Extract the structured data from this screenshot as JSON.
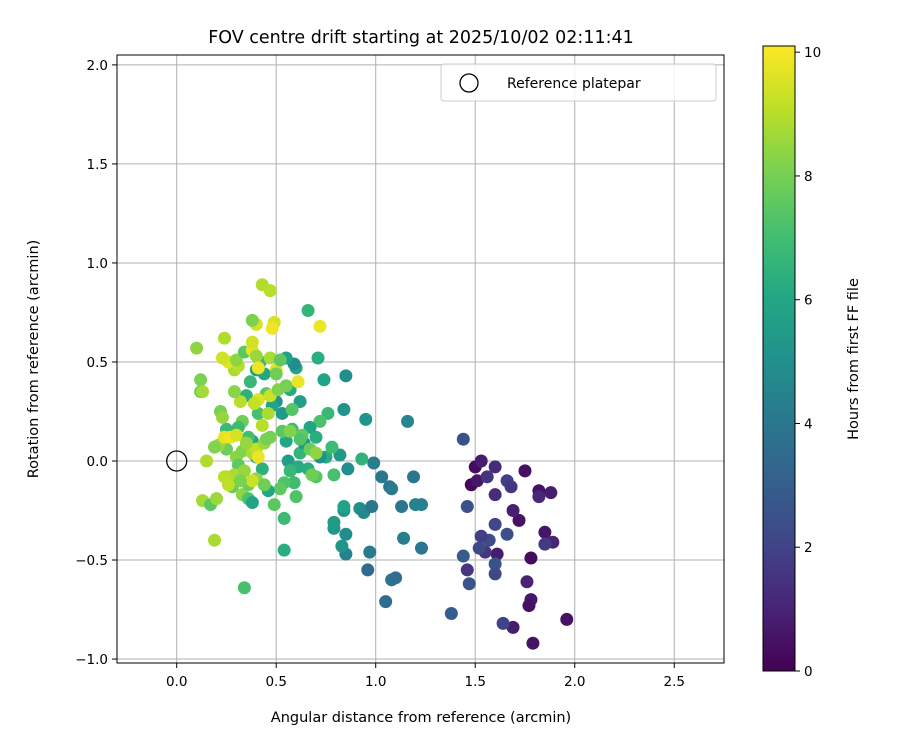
{
  "chart_data": {
    "type": "scatter",
    "title": "FOV centre drift starting at 2025/10/02 02:11:41",
    "xlabel": "Angular distance from reference (arcmin)",
    "ylabel": "Rotation from reference (arcmin)",
    "xlim": [
      -0.3,
      2.75
    ],
    "ylim": [
      -1.02,
      2.05
    ],
    "xticks": [
      0.0,
      0.5,
      1.0,
      1.5,
      2.0,
      2.5
    ],
    "xtick_labels": [
      "0.0",
      "0.5",
      "1.0",
      "1.5",
      "2.0",
      "2.5"
    ],
    "yticks": [
      -1.0,
      -0.5,
      0.0,
      0.5,
      1.0,
      1.5,
      2.0
    ],
    "ytick_labels": [
      "−1.0",
      "−0.5",
      "0.0",
      "0.5",
      "1.0",
      "1.5",
      "2.0"
    ],
    "grid": true,
    "legend": {
      "placement": "upper-right",
      "entries": [
        "Reference platepar"
      ]
    },
    "colorbar": {
      "label": "Hours from first FF file",
      "colormap": "viridis",
      "range": [
        0,
        10.1
      ],
      "ticks": [
        0,
        2,
        4,
        6,
        8,
        10
      ],
      "tick_labels": [
        "0",
        "2",
        "4",
        "6",
        "8",
        "10"
      ]
    },
    "reference_point": {
      "x": 0.0,
      "y": 0.0
    },
    "points": [
      [
        1.5,
        -0.03,
        0.3
      ],
      [
        1.53,
        0.0,
        0.8
      ],
      [
        1.6,
        -0.03,
        1.2
      ],
      [
        1.75,
        -0.05,
        0.4
      ],
      [
        1.48,
        -0.12,
        0.2
      ],
      [
        1.51,
        -0.1,
        0.6
      ],
      [
        1.56,
        -0.08,
        1.5
      ],
      [
        1.66,
        -0.1,
        1.9
      ],
      [
        1.68,
        -0.13,
        1.6
      ],
      [
        1.82,
        -0.15,
        0.5
      ],
      [
        1.88,
        -0.16,
        0.8
      ],
      [
        1.82,
        -0.18,
        1.1
      ],
      [
        1.6,
        -0.17,
        1.3
      ],
      [
        1.72,
        -0.3,
        0.5
      ],
      [
        1.69,
        -0.25,
        0.9
      ],
      [
        1.85,
        -0.36,
        0.6
      ],
      [
        1.89,
        -0.41,
        1.0
      ],
      [
        1.85,
        -0.42,
        1.7
      ],
      [
        1.78,
        -0.49,
        0.3
      ],
      [
        1.61,
        -0.47,
        0.8
      ],
      [
        1.57,
        -0.4,
        2.3
      ],
      [
        1.53,
        -0.38,
        1.9
      ],
      [
        1.55,
        -0.46,
        1.6
      ],
      [
        1.52,
        -0.44,
        2.2
      ],
      [
        1.6,
        -0.32,
        2.1
      ],
      [
        1.66,
        -0.37,
        2.4
      ],
      [
        1.6,
        -0.52,
        2.6
      ],
      [
        1.6,
        -0.57,
        2.2
      ],
      [
        1.46,
        -0.55,
        1.6
      ],
      [
        1.76,
        -0.61,
        1.0
      ],
      [
        1.78,
        -0.7,
        0.7
      ],
      [
        1.77,
        -0.73,
        0.4
      ],
      [
        1.69,
        -0.84,
        0.8
      ],
      [
        1.64,
        -0.82,
        2.0
      ],
      [
        1.79,
        -0.92,
        0.5
      ],
      [
        1.96,
        -0.8,
        0.5
      ],
      [
        1.47,
        -0.62,
        2.6
      ],
      [
        1.44,
        -0.48,
        2.9
      ],
      [
        1.44,
        0.11,
        2.5
      ],
      [
        1.46,
        -0.23,
        2.5
      ],
      [
        1.38,
        -0.77,
        3.0
      ],
      [
        1.05,
        -0.71,
        3.6
      ],
      [
        1.08,
        -0.6,
        3.8
      ],
      [
        1.1,
        -0.59,
        3.7
      ],
      [
        0.96,
        -0.55,
        3.5
      ],
      [
        0.97,
        -0.46,
        4.2
      ],
      [
        0.85,
        -0.47,
        4.5
      ],
      [
        0.83,
        -0.43,
        5.2
      ],
      [
        0.85,
        -0.37,
        4.9
      ],
      [
        0.79,
        -0.34,
        5.3
      ],
      [
        0.79,
        -0.31,
        5.5
      ],
      [
        0.84,
        -0.25,
        5.2
      ],
      [
        0.84,
        -0.23,
        5.8
      ],
      [
        0.92,
        -0.24,
        5.0
      ],
      [
        0.94,
        -0.26,
        4.7
      ],
      [
        0.98,
        -0.23,
        4.0
      ],
      [
        1.03,
        -0.08,
        4.0
      ],
      [
        0.99,
        -0.01,
        4.3
      ],
      [
        1.07,
        -0.13,
        3.8
      ],
      [
        1.08,
        -0.14,
        4.2
      ],
      [
        1.13,
        -0.23,
        3.9
      ],
      [
        1.19,
        -0.08,
        4.0
      ],
      [
        1.2,
        -0.22,
        4.5
      ],
      [
        1.23,
        -0.22,
        4.5
      ],
      [
        1.14,
        -0.39,
        4.3
      ],
      [
        1.23,
        -0.44,
        3.9
      ],
      [
        1.16,
        0.2,
        4.6
      ],
      [
        0.95,
        0.21,
        5.2
      ],
      [
        0.86,
        -0.04,
        5.0
      ],
      [
        0.82,
        0.03,
        5.4
      ],
      [
        0.84,
        0.26,
        5.2
      ],
      [
        0.85,
        0.43,
        5.0
      ],
      [
        0.93,
        0.01,
        6.5
      ],
      [
        0.75,
        0.02,
        6.2
      ],
      [
        0.72,
        0.02,
        5.0
      ],
      [
        0.74,
        0.41,
        5.8
      ],
      [
        0.71,
        0.52,
        6.3
      ],
      [
        0.66,
        0.76,
        6.6
      ],
      [
        0.78,
        0.07,
        6.9
      ],
      [
        0.79,
        -0.07,
        7.1
      ],
      [
        0.76,
        0.24,
        6.7
      ],
      [
        0.72,
        0.2,
        7.2
      ],
      [
        0.7,
        0.12,
        6.3
      ],
      [
        0.67,
        0.17,
        6.0
      ],
      [
        0.62,
        0.3,
        5.6
      ],
      [
        0.6,
        0.47,
        5.9
      ],
      [
        0.59,
        0.49,
        4.9
      ],
      [
        0.55,
        0.52,
        5.7
      ],
      [
        0.57,
        0.36,
        6.2
      ],
      [
        0.53,
        0.24,
        5.5
      ],
      [
        0.5,
        0.3,
        5.1
      ],
      [
        0.48,
        0.28,
        5.8
      ],
      [
        0.55,
        0.1,
        6.0
      ],
      [
        0.53,
        0.15,
        7.5
      ],
      [
        0.58,
        0.16,
        6.8
      ],
      [
        0.56,
        0.0,
        5.6
      ],
      [
        0.62,
        0.04,
        6.6
      ],
      [
        0.64,
        0.09,
        5.3
      ],
      [
        0.66,
        -0.04,
        6.3
      ],
      [
        0.7,
        -0.08,
        7.4
      ],
      [
        0.61,
        -0.03,
        6.2
      ],
      [
        0.57,
        -0.05,
        6.7
      ],
      [
        0.59,
        -0.11,
        6.9
      ],
      [
        0.54,
        -0.11,
        7.3
      ],
      [
        0.52,
        -0.14,
        7.6
      ],
      [
        0.46,
        -0.15,
        6.0
      ],
      [
        0.49,
        -0.22,
        7.5
      ],
      [
        0.54,
        -0.29,
        6.8
      ],
      [
        0.6,
        -0.18,
        7.3
      ],
      [
        0.54,
        -0.45,
        6.3
      ],
      [
        0.43,
        -0.04,
        6.4
      ],
      [
        0.4,
        0.02,
        6.0
      ],
      [
        0.38,
        0.1,
        5.9
      ],
      [
        0.36,
        0.12,
        7.0
      ],
      [
        0.41,
        0.24,
        7.1
      ],
      [
        0.45,
        0.34,
        7.5
      ],
      [
        0.44,
        0.44,
        6.0
      ],
      [
        0.42,
        0.5,
        6.8
      ],
      [
        0.4,
        0.46,
        5.7
      ],
      [
        0.37,
        0.4,
        6.7
      ],
      [
        0.35,
        0.33,
        6.4
      ],
      [
        0.33,
        0.2,
        7.9
      ],
      [
        0.31,
        0.17,
        6.9
      ],
      [
        0.28,
        0.13,
        6.5
      ],
      [
        0.25,
        0.16,
        6.8
      ],
      [
        0.23,
        0.09,
        7.3
      ],
      [
        0.25,
        0.06,
        7.9
      ],
      [
        0.3,
        0.02,
        8.4
      ],
      [
        0.33,
        0.05,
        8.2
      ],
      [
        0.31,
        -0.02,
        7.6
      ],
      [
        0.29,
        -0.07,
        8.8
      ],
      [
        0.25,
        -0.08,
        8.9
      ],
      [
        0.28,
        -0.13,
        7.8
      ],
      [
        0.33,
        -0.17,
        8.4
      ],
      [
        0.36,
        -0.19,
        7.2
      ],
      [
        0.38,
        -0.21,
        5.9
      ],
      [
        0.36,
        -0.12,
        7.8
      ],
      [
        0.4,
        -0.09,
        8.3
      ],
      [
        0.34,
        -0.05,
        8.5
      ],
      [
        0.38,
        0.04,
        8.8
      ],
      [
        0.4,
        0.06,
        9.2
      ],
      [
        0.44,
        0.09,
        8.6
      ],
      [
        0.47,
        0.12,
        8.0
      ],
      [
        0.46,
        0.24,
        8.8
      ],
      [
        0.47,
        0.33,
        9.3
      ],
      [
        0.41,
        0.31,
        9.6
      ],
      [
        0.39,
        0.29,
        9.2
      ],
      [
        0.32,
        0.3,
        9.0
      ],
      [
        0.29,
        0.35,
        8.3
      ],
      [
        0.29,
        0.46,
        8.8
      ],
      [
        0.31,
        0.48,
        9.0
      ],
      [
        0.26,
        0.5,
        9.6
      ],
      [
        0.23,
        0.52,
        9.4
      ],
      [
        0.24,
        0.62,
        8.9
      ],
      [
        0.3,
        0.51,
        8.4
      ],
      [
        0.34,
        0.55,
        7.5
      ],
      [
        0.38,
        0.56,
        9.7
      ],
      [
        0.38,
        0.6,
        9.4
      ],
      [
        0.4,
        0.53,
        8.6
      ],
      [
        0.41,
        0.47,
        9.9
      ],
      [
        0.47,
        0.52,
        8.8
      ],
      [
        0.5,
        0.46,
        9.6
      ],
      [
        0.52,
        0.51,
        7.6
      ],
      [
        0.5,
        0.44,
        7.9
      ],
      [
        0.51,
        0.36,
        8.2
      ],
      [
        0.55,
        0.38,
        8.0
      ],
      [
        0.61,
        0.4,
        9.8
      ],
      [
        0.58,
        0.26,
        7.4
      ],
      [
        0.43,
        0.89,
        8.9
      ],
      [
        0.47,
        0.86,
        9.0
      ],
      [
        0.49,
        0.7,
        9.5
      ],
      [
        0.48,
        0.67,
        9.9
      ],
      [
        0.4,
        0.69,
        9.5
      ],
      [
        0.38,
        0.71,
        8.1
      ],
      [
        0.72,
        0.68,
        9.8
      ],
      [
        0.12,
        0.41,
        8.1
      ],
      [
        0.12,
        0.35,
        7.8
      ],
      [
        0.13,
        0.35,
        8.7
      ],
      [
        0.1,
        0.57,
        8.4
      ],
      [
        0.21,
        0.08,
        8.6
      ],
      [
        0.24,
        0.12,
        9.7
      ],
      [
        0.27,
        0.12,
        9.9
      ],
      [
        0.3,
        0.13,
        9.5
      ],
      [
        0.22,
        0.25,
        8.0
      ],
      [
        0.15,
        0.0,
        8.9
      ],
      [
        0.19,
        0.07,
        8.2
      ],
      [
        0.23,
        0.22,
        8.5
      ],
      [
        0.24,
        -0.08,
        9.0
      ],
      [
        0.13,
        -0.2,
        8.7
      ],
      [
        0.17,
        -0.22,
        7.5
      ],
      [
        0.2,
        -0.19,
        8.6
      ],
      [
        0.19,
        -0.4,
        8.8
      ],
      [
        0.34,
        -0.64,
        7.1
      ],
      [
        0.26,
        -0.12,
        9.1
      ],
      [
        0.38,
        -0.1,
        9.3
      ],
      [
        0.41,
        0.02,
        9.8
      ],
      [
        0.43,
        0.18,
        9.0
      ],
      [
        0.45,
        0.11,
        8.0
      ],
      [
        0.35,
        0.09,
        8.5
      ],
      [
        0.44,
        -0.12,
        7.9
      ],
      [
        0.32,
        -0.1,
        8.1
      ],
      [
        0.63,
        0.13,
        7.6
      ],
      [
        0.67,
        0.06,
        7.8
      ],
      [
        0.7,
        0.04,
        8.4
      ],
      [
        0.68,
        -0.07,
        7.9
      ],
      [
        0.62,
        0.11,
        7.3
      ],
      [
        0.57,
        0.15,
        8.2
      ]
    ]
  }
}
